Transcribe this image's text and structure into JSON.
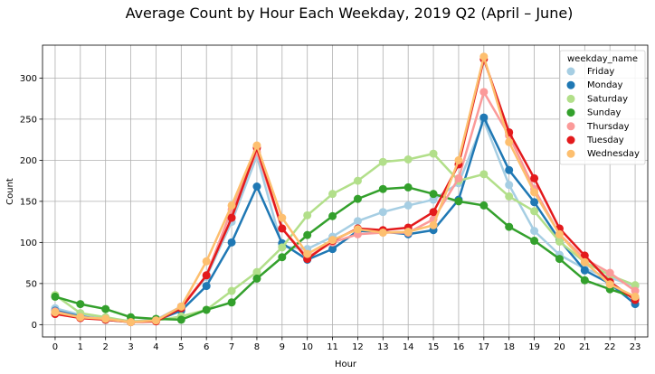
{
  "chart_data": {
    "type": "line",
    "title": "Average Count by Hour Each Weekday, 2019 Q2 (April – June)",
    "xlabel": "Hour",
    "ylabel": "Count",
    "x": [
      0,
      1,
      2,
      3,
      4,
      5,
      6,
      7,
      8,
      9,
      10,
      11,
      12,
      13,
      14,
      15,
      16,
      17,
      18,
      19,
      20,
      21,
      22,
      23
    ],
    "xlim": [
      -0.5,
      23.5
    ],
    "ylim": [
      -15,
      340
    ],
    "yticks": [
      0,
      50,
      100,
      150,
      200,
      250,
      300
    ],
    "grid": true,
    "legend": {
      "title": "weekday_name",
      "placement": "top-right"
    },
    "series": [
      {
        "name": "Friday",
        "color": "#a6cee3",
        "values": [
          20,
          12,
          8,
          4,
          6,
          22,
          58,
          125,
          205,
          95,
          92,
          107,
          126,
          137,
          145,
          152,
          172,
          248,
          170,
          114,
          85,
          68,
          57,
          47
        ]
      },
      {
        "name": "Monday",
        "color": "#1f78b4",
        "values": [
          17,
          10,
          6,
          3,
          5,
          17,
          47,
          100,
          168,
          99,
          79,
          92,
          114,
          113,
          110,
          115,
          152,
          252,
          188,
          149,
          103,
          66,
          50,
          25
        ]
      },
      {
        "name": "Saturday",
        "color": "#b2df8a",
        "values": [
          36,
          14,
          9,
          4,
          5,
          10,
          18,
          41,
          64,
          94,
          133,
          159,
          175,
          198,
          201,
          208,
          175,
          183,
          156,
          138,
          101,
          76,
          60,
          48
        ]
      },
      {
        "name": "Sunday",
        "color": "#33a02c",
        "values": [
          34,
          25,
          19,
          9,
          7,
          6,
          18,
          27,
          56,
          82,
          109,
          132,
          153,
          165,
          167,
          159,
          150,
          145,
          119,
          102,
          80,
          54,
          43,
          33
        ]
      },
      {
        "name": "Thursday",
        "color": "#fb9a99",
        "values": [
          16,
          9,
          7,
          3,
          5,
          22,
          60,
          140,
          210,
          117,
          82,
          100,
          110,
          112,
          112,
          128,
          178,
          283,
          230,
          165,
          110,
          80,
          63,
          41
        ]
      },
      {
        "name": "Tuesday",
        "color": "#e31a1c",
        "values": [
          13,
          8,
          6,
          3,
          4,
          20,
          60,
          130,
          215,
          117,
          80,
          102,
          117,
          115,
          118,
          137,
          195,
          323,
          234,
          178,
          117,
          84,
          52,
          30
        ]
      },
      {
        "name": "Wednesday",
        "color": "#fdbf6f",
        "values": [
          15,
          9,
          7,
          3,
          5,
          22,
          77,
          145,
          218,
          130,
          86,
          103,
          116,
          112,
          113,
          121,
          200,
          326,
          222,
          161,
          110,
          76,
          49,
          34
        ]
      }
    ]
  }
}
